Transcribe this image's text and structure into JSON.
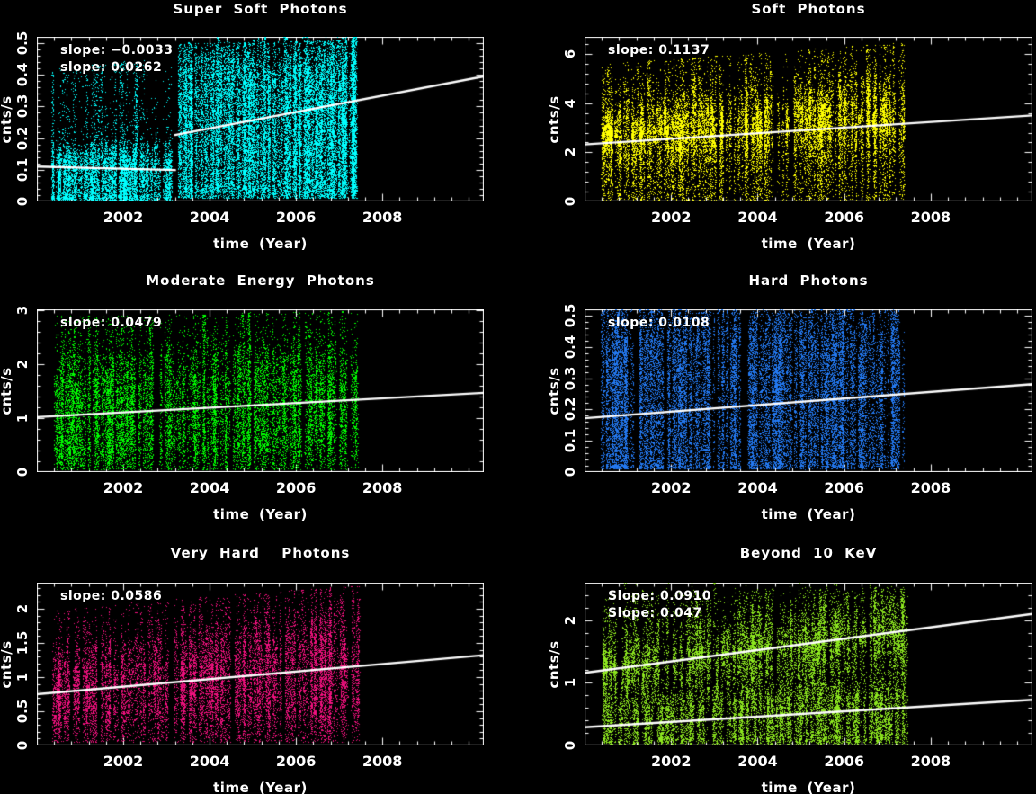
{
  "figure": {
    "background": "#000000",
    "text_color": "#ffffff",
    "trend_line_color": "#ffffff"
  },
  "chart_data": [
    {
      "id": "super-soft-photons",
      "type": "scatter",
      "title": "Super Soft Photons",
      "xlabel": "time (Year)",
      "ylabel": "cnts/s",
      "annotations": [
        "slope: −0.0033",
        "slope: 0.0262"
      ],
      "slopes": [
        -0.0033,
        0.0262
      ],
      "color": "#00ffff",
      "xlim": [
        2000,
        2010.35
      ],
      "ylim": [
        0,
        0.52
      ],
      "xticks": [
        2002,
        2004,
        2006,
        2008
      ],
      "yticks": [
        0,
        0.1,
        0.2,
        0.3,
        0.4,
        0.5
      ],
      "ytick_labels": [
        "0",
        "0.1",
        "0.2",
        "0.3",
        "0.4",
        "0.5"
      ],
      "x_minor_step": 0.4,
      "y_minor_step": 0.02,
      "trend_lines": [
        {
          "x1": 2000,
          "y1": 0.11,
          "x2": 2003.2,
          "y2": 0.099
        },
        {
          "x1": 2003.2,
          "y1": 0.21,
          "x2": 2010.35,
          "y2": 0.395
        }
      ],
      "clusters": [
        {
          "x_start": 2000.35,
          "x_end": 2003.15,
          "columns": 150,
          "points_per_column": 55,
          "core_low_start": 0.015,
          "core_low_end": 0.02,
          "core_high_start": 0.16,
          "core_high_end": 0.17,
          "tail_high_start": 0.42,
          "tail_high_end": 0.46,
          "tail_low": 0.003,
          "up_fraction": 0.1,
          "down_fraction": 0.12,
          "spike_fraction": 0.1
        },
        {
          "x_start": 2003.22,
          "x_end": 2007.42,
          "columns": 240,
          "points_per_column": 110,
          "core_low_start": 0.04,
          "core_low_end": 0.05,
          "core_high_start": 0.45,
          "core_high_end": 0.48,
          "tail_high_start": 0.5,
          "tail_high_end": 0.51,
          "tail_low": 0.01,
          "up_fraction": 0.05,
          "down_fraction": 0.08,
          "spike_fraction": 0.25
        }
      ]
    },
    {
      "id": "soft-photons",
      "type": "scatter",
      "title": "Soft Photons",
      "xlabel": "time (Year)",
      "ylabel": "cnts/s",
      "annotations": [
        "slope: 0.1137"
      ],
      "slopes": [
        0.1137
      ],
      "color": "#ffff00",
      "xlim": [
        2000,
        2010.35
      ],
      "ylim": [
        0,
        6.7
      ],
      "xticks": [
        2002,
        2004,
        2006,
        2008
      ],
      "yticks": [
        0,
        2,
        4,
        6
      ],
      "ytick_labels": [
        "0",
        "2",
        "4",
        "6"
      ],
      "x_minor_step": 0.4,
      "y_minor_step": 0.4,
      "trend_lines": [
        {
          "x1": 2000,
          "y1": 2.32,
          "x2": 2010.35,
          "y2": 3.5
        }
      ],
      "clusters": [
        {
          "x_start": 2000.4,
          "x_end": 2007.4,
          "columns": 280,
          "points_per_column": 70,
          "core_low_start": 2.1,
          "core_low_end": 2.5,
          "core_high_start": 3.5,
          "core_high_end": 4.6,
          "tail_high_start": 5.6,
          "tail_high_end": 6.5,
          "tail_low": 0.05,
          "up_fraction": 0.1,
          "down_fraction": 0.25,
          "spike_fraction": 0.12
        }
      ]
    },
    {
      "id": "moderate-energy-photons",
      "type": "scatter",
      "title": "Moderate Energy Photons",
      "xlabel": "time (Year)",
      "ylabel": "cnts/s",
      "annotations": [
        "slope: 0.0479"
      ],
      "slopes": [
        0.0479
      ],
      "color": "#00ff00",
      "xlim": [
        2000,
        2010.35
      ],
      "ylim": [
        0,
        3.02
      ],
      "xticks": [
        2002,
        2004,
        2006,
        2008
      ],
      "yticks": [
        0,
        1,
        2,
        3
      ],
      "ytick_labels": [
        "0",
        "1",
        "2",
        "3"
      ],
      "x_minor_step": 0.4,
      "y_minor_step": 0.2,
      "trend_lines": [
        {
          "x1": 2000,
          "y1": 1.02,
          "x2": 2010.35,
          "y2": 1.47
        }
      ],
      "clusters": [
        {
          "x_start": 2000.35,
          "x_end": 2007.45,
          "columns": 280,
          "points_per_column": 65,
          "core_low_start": 0.5,
          "core_low_end": 0.7,
          "core_high_start": 1.85,
          "core_high_end": 2.1,
          "tail_high_start": 2.9,
          "tail_high_end": 3.0,
          "tail_low": 0.05,
          "up_fraction": 0.12,
          "down_fraction": 0.22,
          "spike_fraction": 0.14
        }
      ]
    },
    {
      "id": "hard-photons",
      "type": "scatter",
      "title": "Hard Photons",
      "xlabel": "time (Year)",
      "ylabel": "cnts/s",
      "annotations": [
        "slope: 0.0108"
      ],
      "slopes": [
        0.0108
      ],
      "color": "#2379f2",
      "xlim": [
        2000,
        2010.35
      ],
      "ylim": [
        0,
        0.52
      ],
      "xticks": [
        2002,
        2004,
        2006,
        2008
      ],
      "yticks": [
        0,
        0.1,
        0.2,
        0.3,
        0.4,
        0.5
      ],
      "ytick_labels": [
        "0",
        "0.1",
        "0.2",
        "0.3",
        "0.4",
        "0.5"
      ],
      "x_minor_step": 0.4,
      "y_minor_step": 0.02,
      "trend_lines": [
        {
          "x1": 2000,
          "y1": 0.172,
          "x2": 2010.35,
          "y2": 0.281
        }
      ],
      "clusters": [
        {
          "x_start": 2000.35,
          "x_end": 2007.4,
          "columns": 320,
          "points_per_column": 85,
          "core_low_start": 0.02,
          "core_low_end": 0.03,
          "core_high_start": 0.49,
          "core_high_end": 0.5,
          "tail_high_start": 0.51,
          "tail_high_end": 0.51,
          "tail_low": 0.01,
          "up_fraction": 0.02,
          "down_fraction": 0.05,
          "spike_fraction": 0.0
        }
      ]
    },
    {
      "id": "very-hard-photons",
      "type": "scatter",
      "title": "Very Hard  Photons",
      "xlabel": "time (Year)",
      "ylabel": "cnts/s",
      "annotations": [
        "slope: 0.0586"
      ],
      "slopes": [
        0.0586
      ],
      "color": "#f0107e",
      "xlim": [
        2000,
        2010.35
      ],
      "ylim": [
        0,
        2.38
      ],
      "xticks": [
        2002,
        2004,
        2006,
        2008
      ],
      "yticks": [
        0,
        0.5,
        1,
        1.5,
        2
      ],
      "ytick_labels": [
        "0",
        "0.5",
        "1",
        "1.5",
        "2"
      ],
      "x_minor_step": 0.4,
      "y_minor_step": 0.1,
      "trend_lines": [
        {
          "x1": 2000,
          "y1": 0.75,
          "x2": 2010.35,
          "y2": 1.32
        }
      ],
      "clusters": [
        {
          "x_start": 2000.35,
          "x_end": 2007.45,
          "columns": 280,
          "points_per_column": 60,
          "core_low_start": 0.45,
          "core_low_end": 0.6,
          "core_high_start": 1.25,
          "core_high_end": 1.75,
          "tail_high_start": 2.0,
          "tail_high_end": 2.35,
          "tail_low": 0.05,
          "up_fraction": 0.1,
          "down_fraction": 0.2,
          "spike_fraction": 0.12
        }
      ]
    },
    {
      "id": "beyond-10-kev",
      "type": "scatter",
      "title": "Beyond 10 KeV",
      "xlabel": "time (Year)",
      "ylabel": "cnts/s",
      "annotations": [
        "Slope: 0.0910",
        "Slope: 0.047"
      ],
      "slopes": [
        0.091,
        0.047
      ],
      "color": "#8ce61e",
      "xlim": [
        2000,
        2010.35
      ],
      "ylim": [
        0,
        2.6
      ],
      "xticks": [
        2002,
        2004,
        2006,
        2008
      ],
      "yticks": [
        0,
        1,
        2
      ],
      "ytick_labels": [
        "0",
        "1",
        "2"
      ],
      "x_minor_step": 0.4,
      "y_minor_step": 0.2,
      "trend_lines": [
        {
          "x1": 2000,
          "y1": 1.16,
          "x2": 2010.35,
          "y2": 2.1
        },
        {
          "x1": 2000,
          "y1": 0.29,
          "x2": 2010.35,
          "y2": 0.73
        }
      ],
      "clusters": [
        {
          "x_start": 2000.4,
          "x_end": 2007.45,
          "columns": 230,
          "points_per_column": 50,
          "core_low_start": 0.95,
          "core_low_end": 1.35,
          "core_high_start": 1.6,
          "core_high_end": 2.25,
          "tail_high_start": 2.4,
          "tail_high_end": 2.55,
          "tail_low": 0.6,
          "up_fraction": 0.08,
          "down_fraction": 0.1,
          "spike_fraction": 0.1
        },
        {
          "x_start": 2000.4,
          "x_end": 2007.45,
          "columns": 210,
          "points_per_column": 40,
          "core_low_start": 0.1,
          "core_low_end": 0.15,
          "core_high_start": 0.7,
          "core_high_end": 0.95,
          "tail_high_start": 1.0,
          "tail_high_end": 1.0,
          "tail_low": 0.02,
          "up_fraction": 0.05,
          "down_fraction": 0.15,
          "spike_fraction": 0.05
        },
        {
          "x_start": 2000.4,
          "x_end": 2007.45,
          "columns": 130,
          "points_per_column": 30,
          "core_low_start": 0.05,
          "core_low_end": 0.05,
          "core_high_start": 2.4,
          "core_high_end": 2.55,
          "tail_high_start": 2.55,
          "tail_high_end": 2.55,
          "tail_low": 0.02,
          "up_fraction": 0.0,
          "down_fraction": 0.0,
          "spike_fraction": 0.0
        }
      ]
    }
  ]
}
